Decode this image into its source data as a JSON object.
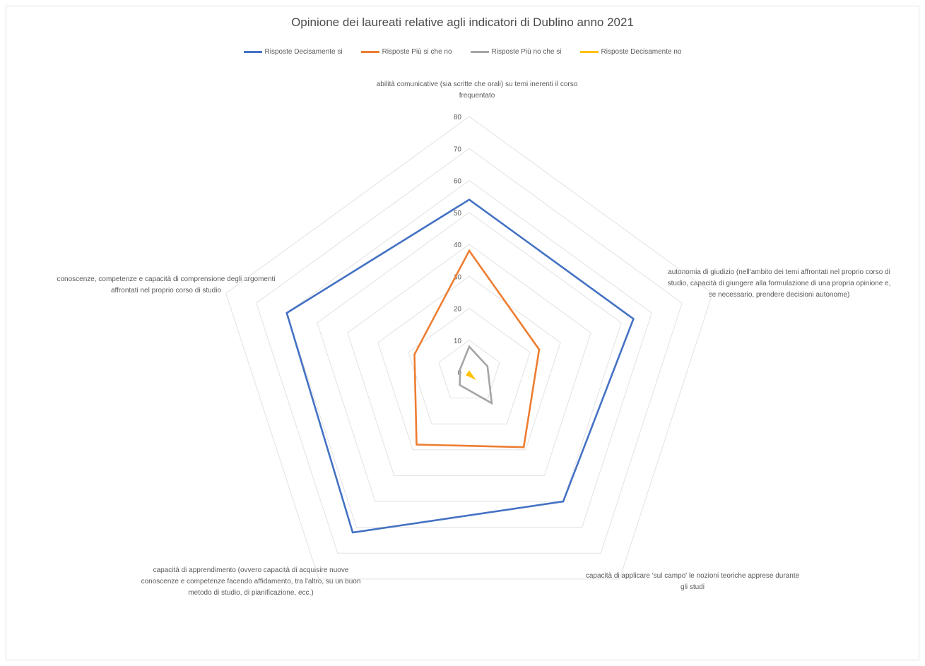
{
  "chart_data": {
    "type": "radar",
    "title": "Opinione dei laureati relative agli indicatori di Dublino anno 2021",
    "axes": [
      "abilità comunicative (sia scritte che orali) su temi inerenti il corso frequentato",
      "autonomia di giudizio (nell'ambito dei temi affrontati nel proprio corso di studio, capacità di giungere alla formulazione di una propria opinione e, se necessario, prendere decisioni autonome)",
      "capacità di applicare 'sul campo' le nozioni teoriche apprese durante gli studi",
      "capacità di apprendimento (ovvero capacità di acquisire nuove conoscenze e competenze facendo affidamento, tra l'altro, su un buon metodo di studio, di pianificazione, ecc.)",
      "conoscenze, competenze e capacità di comprensione degli argomenti affrontati nel proprio corso di studio"
    ],
    "scale": {
      "min": 0,
      "max": 80,
      "step": 10
    },
    "tick_labels": [
      "0",
      "10",
      "20",
      "30",
      "40",
      "50",
      "60",
      "70",
      "80"
    ],
    "series": [
      {
        "name": "Risposte Decisamente si",
        "color": "#4472c4",
        "values": [
          54,
          54,
          50,
          62,
          60
        ]
      },
      {
        "name": "Risposte Più si che no",
        "color": "#ed7d31",
        "values": [
          38,
          23,
          29,
          28,
          18
        ]
      },
      {
        "name": "Risposte Più no che si",
        "color": "#a5a5a5",
        "values": [
          8,
          6,
          12,
          5,
          3
        ]
      },
      {
        "name": "Risposte Decisamente no",
        "color": "#ffc000",
        "values": [
          0,
          0,
          2,
          1,
          0
        ]
      }
    ],
    "legend_position": "top",
    "grid": true
  }
}
